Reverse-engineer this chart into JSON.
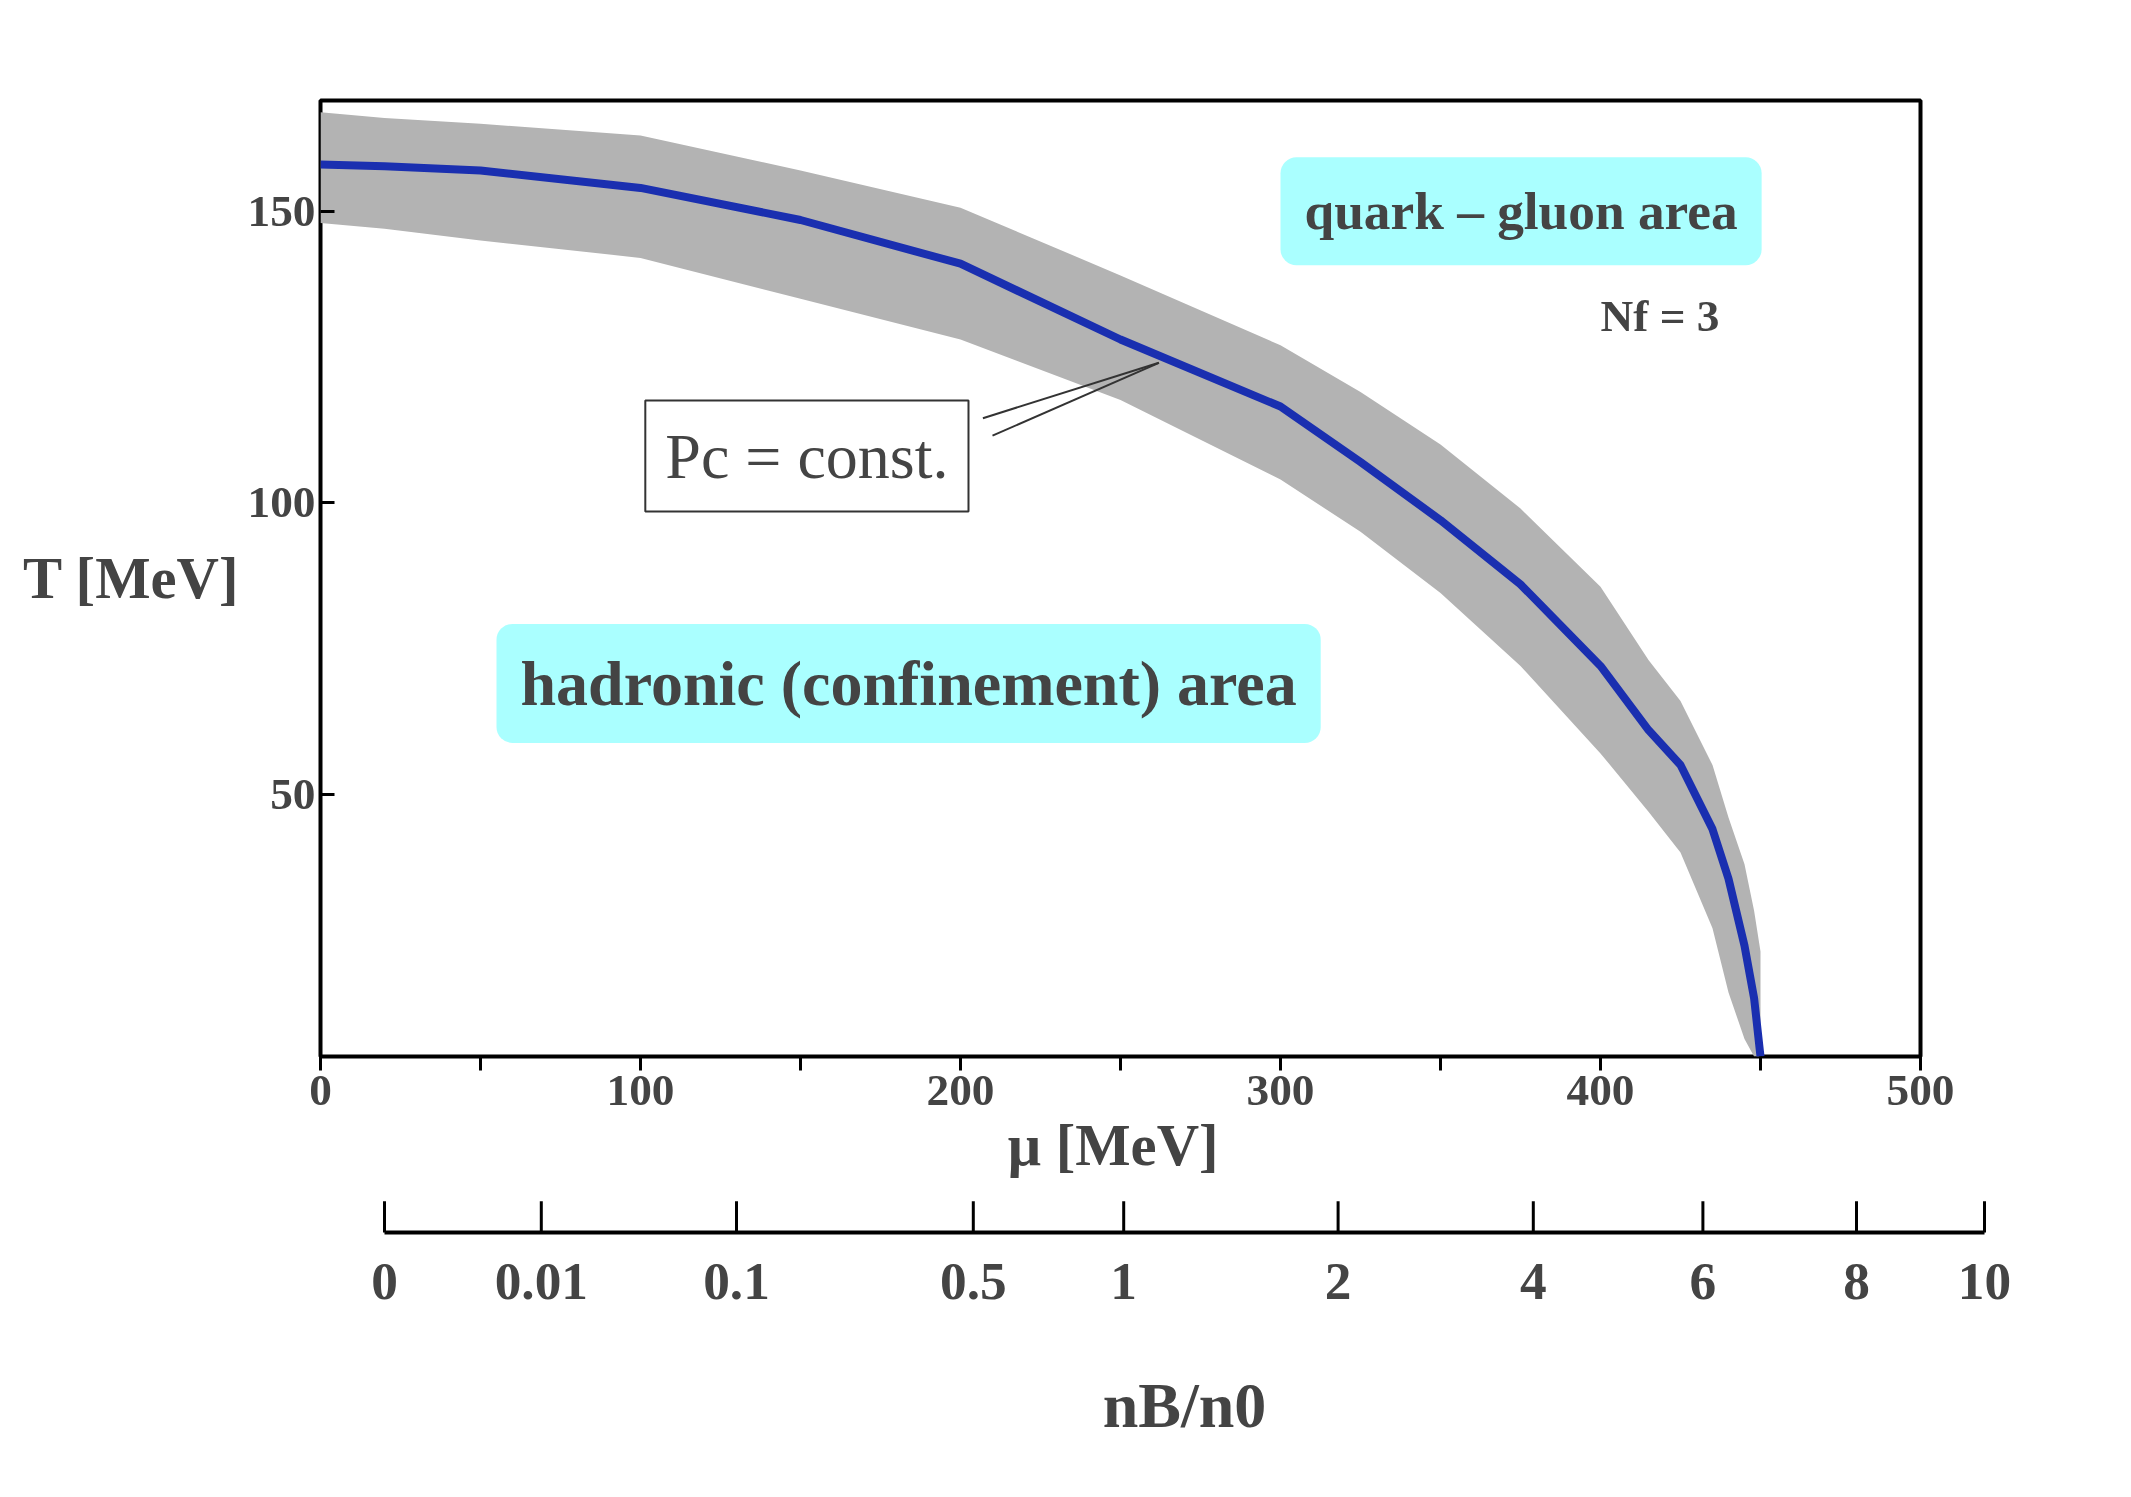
{
  "chart_data": {
    "type": "line",
    "xlabel": "μ  [MeV]",
    "ylabel": "T [MeV]",
    "x2label": "nB/n0",
    "x": [
      0,
      20,
      50,
      100,
      150,
      200,
      250,
      300,
      325,
      350,
      375,
      400,
      415,
      425,
      435,
      440,
      445,
      448,
      450
    ],
    "series": [
      {
        "color": "#1a2fb0",
        "values": [
          158,
          157.7,
          157,
          154,
          148.5,
          141,
          128,
          116.5,
          107,
          97,
          86,
          72,
          61,
          55,
          44,
          35.5,
          24,
          15,
          5
        ],
        "upper": [
          167,
          166,
          165,
          163,
          157,
          150.6,
          139,
          127,
          119,
          110,
          99,
          85.6,
          73,
          66,
          55,
          46,
          38,
          30,
          23
        ],
        "lower": [
          148,
          147,
          145,
          142,
          135,
          128,
          117.6,
          104,
          95,
          84.5,
          72,
          57,
          47,
          40,
          27,
          16,
          8,
          5,
          5
        ]
      }
    ],
    "xlim": [
      0,
      500
    ],
    "ylim": [
      5,
      169
    ],
    "xticks": [
      0,
      {
        "value": 50,
        "label": null
      },
      100,
      {
        "value": 150,
        "label": null
      },
      200,
      {
        "value": 250,
        "label": null
      },
      300,
      {
        "value": 350,
        "label": null
      },
      400,
      {
        "value": 450,
        "label": null
      },
      500
    ],
    "yticks": [
      50,
      100,
      150
    ],
    "annotations": [
      "quark – gluon area",
      "Nf = 3",
      {
        "text": "Pc = const.",
        "x": 262,
        "y": 124
      },
      "hadronic (confinement) area",
      "0",
      "0.01",
      "0.1",
      "0.5",
      "1",
      "2",
      "4",
      "6",
      "8",
      "10"
    ],
    "grid": false,
    "marker": "none",
    "line_style": "solid"
  }
}
